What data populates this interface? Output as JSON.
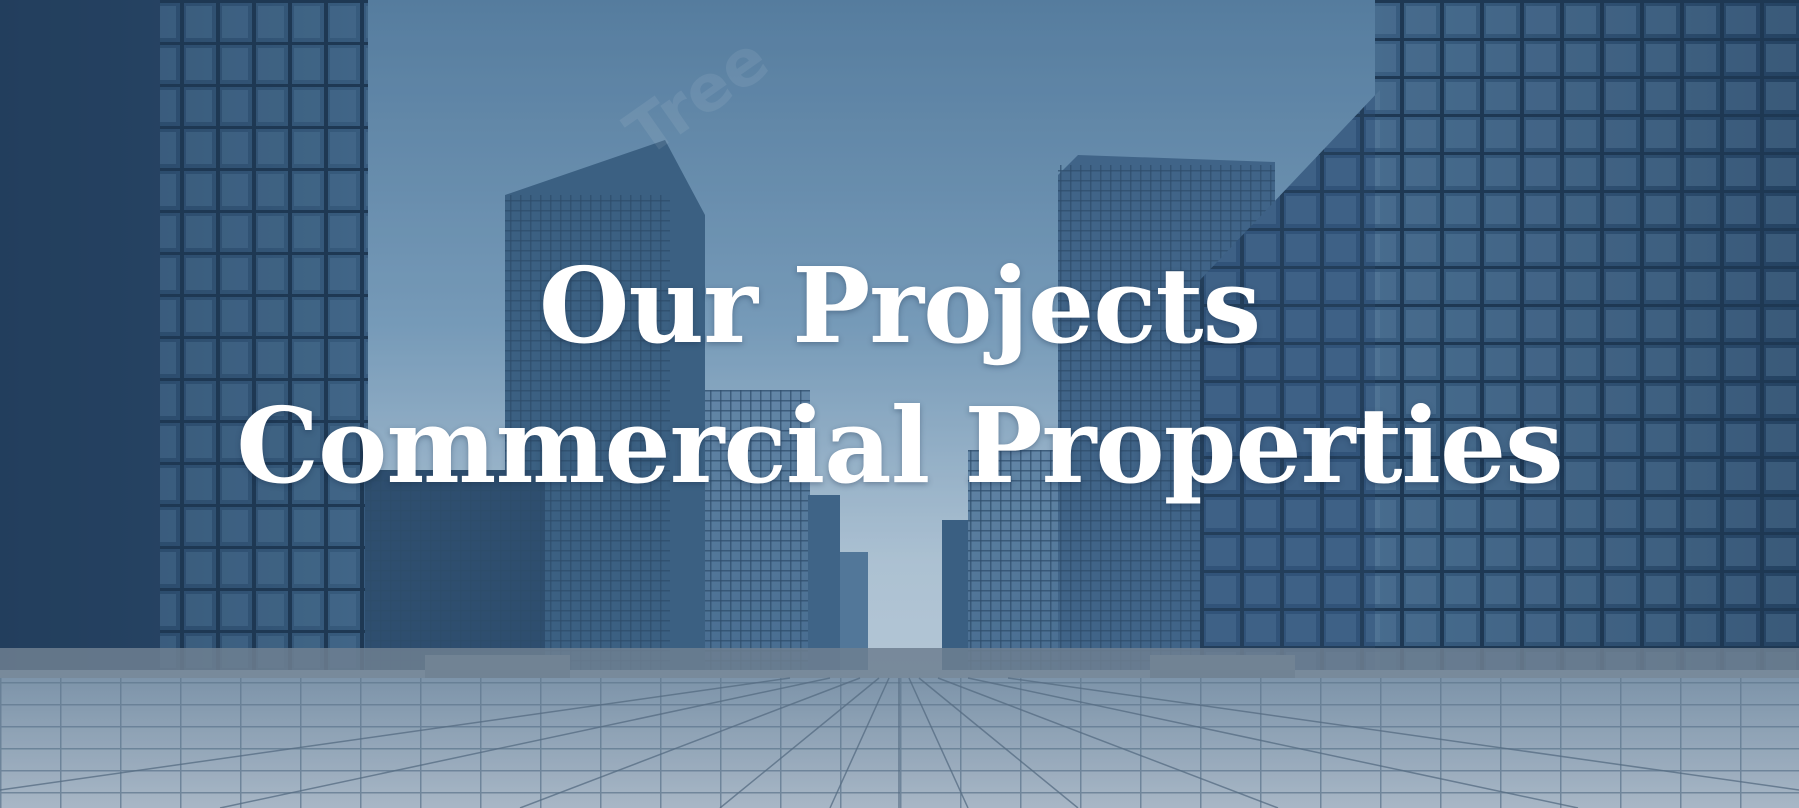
{
  "hero": {
    "title_line1": "Our Projects",
    "title_line2": "Commercial Properties",
    "background_image": "glass-skyscrapers-plaza",
    "colors": {
      "sky_top": "#5f87a8",
      "sky_bottom": "#dbe6ee",
      "building_dark": "#2c4a68",
      "building_mid": "#3f6282",
      "floor": "#a9b9c6",
      "text": "#ffffff"
    }
  },
  "watermark": {
    "text": "Tree"
  }
}
